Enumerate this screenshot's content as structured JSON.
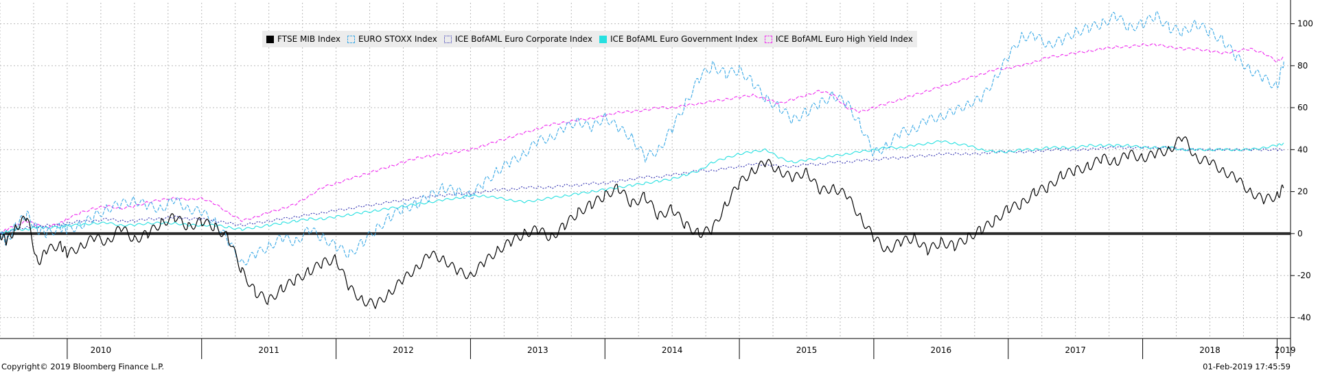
{
  "chart_data": {
    "type": "line",
    "ylim": [
      -50,
      110
    ],
    "y_ticks": [
      100,
      80,
      60,
      40,
      20,
      0,
      -20,
      -40
    ],
    "y_tick_labels": [
      "100",
      "80",
      "60",
      "40",
      "20",
      "0",
      "-20",
      "-40"
    ],
    "x_labels": [
      "2010",
      "2011",
      "2012",
      "2013",
      "2014",
      "2015",
      "2016",
      "2017",
      "2018",
      "2019"
    ],
    "x_start_year": 2009.5,
    "x_end_year": 2019.1,
    "grid": true,
    "y_axis_side": "right",
    "zero_line": true,
    "legend_placement": "top-left",
    "series": [
      {
        "name": "FTSE MIB Index",
        "color": "#000000",
        "dash": "solid",
        "swatch": "filled",
        "x": [
          2009.5,
          2009.55,
          2009.62,
          2009.7,
          2009.78,
          2009.85,
          2009.95,
          2010.0,
          2010.1,
          2010.2,
          2010.3,
          2010.4,
          2010.5,
          2010.6,
          2010.7,
          2010.8,
          2010.9,
          2011.0,
          2011.1,
          2011.2,
          2011.3,
          2011.4,
          2011.5,
          2011.6,
          2011.7,
          2011.8,
          2011.9,
          2012.0,
          2012.1,
          2012.2,
          2012.3,
          2012.4,
          2012.5,
          2012.6,
          2012.7,
          2012.8,
          2012.9,
          2013.0,
          2013.1,
          2013.2,
          2013.3,
          2013.4,
          2013.5,
          2013.6,
          2013.7,
          2013.8,
          2013.9,
          2014.0,
          2014.1,
          2014.2,
          2014.3,
          2014.4,
          2014.5,
          2014.6,
          2014.7,
          2014.8,
          2014.9,
          2015.0,
          2015.1,
          2015.2,
          2015.3,
          2015.4,
          2015.5,
          2015.6,
          2015.7,
          2015.8,
          2015.9,
          2016.0,
          2016.1,
          2016.2,
          2016.3,
          2016.4,
          2016.5,
          2016.6,
          2016.7,
          2016.8,
          2016.9,
          2017.0,
          2017.1,
          2017.2,
          2017.3,
          2017.4,
          2017.5,
          2017.6,
          2017.7,
          2017.8,
          2017.9,
          2018.0,
          2018.1,
          2018.2,
          2018.3,
          2018.4,
          2018.5,
          2018.6,
          2018.7,
          2018.8,
          2018.9,
          2019.0,
          2019.05
        ],
        "values": [
          0,
          -4,
          3,
          8,
          -14,
          -8,
          -5,
          -10,
          -6,
          -2,
          -4,
          3,
          -3,
          0,
          5,
          8,
          3,
          6,
          3,
          -2,
          -18,
          -28,
          -32,
          -26,
          -22,
          -18,
          -14,
          -12,
          -26,
          -32,
          -34,
          -28,
          -22,
          -16,
          -10,
          -12,
          -18,
          -20,
          -14,
          -8,
          -4,
          0,
          2,
          -2,
          4,
          10,
          14,
          18,
          22,
          14,
          18,
          8,
          12,
          4,
          0,
          2,
          14,
          24,
          30,
          34,
          30,
          26,
          30,
          20,
          22,
          18,
          8,
          -2,
          -8,
          -4,
          -2,
          -8,
          -4,
          -6,
          -2,
          2,
          6,
          12,
          14,
          20,
          22,
          28,
          30,
          32,
          36,
          34,
          38,
          36,
          38,
          40,
          46,
          36,
          34,
          30,
          26,
          20,
          16,
          18,
          22
        ]
      },
      {
        "name": "EURO STOXX Index",
        "color": "#3aa9e6",
        "dash": "dashed",
        "swatch": "outline",
        "x": [
          2009.5,
          2009.55,
          2009.62,
          2009.7,
          2009.78,
          2009.85,
          2009.95,
          2010.0,
          2010.1,
          2010.2,
          2010.3,
          2010.4,
          2010.5,
          2010.6,
          2010.7,
          2010.8,
          2010.9,
          2011.0,
          2011.1,
          2011.2,
          2011.3,
          2011.4,
          2011.5,
          2011.6,
          2011.7,
          2011.8,
          2011.9,
          2012.0,
          2012.1,
          2012.2,
          2012.3,
          2012.4,
          2012.5,
          2012.6,
          2012.7,
          2012.8,
          2012.9,
          2013.0,
          2013.1,
          2013.2,
          2013.3,
          2013.4,
          2013.5,
          2013.6,
          2013.7,
          2013.8,
          2013.9,
          2014.0,
          2014.1,
          2014.2,
          2014.3,
          2014.4,
          2014.5,
          2014.6,
          2014.7,
          2014.8,
          2014.9,
          2015.0,
          2015.1,
          2015.2,
          2015.3,
          2015.4,
          2015.5,
          2015.6,
          2015.7,
          2015.8,
          2015.9,
          2016.0,
          2016.1,
          2016.2,
          2016.3,
          2016.4,
          2016.5,
          2016.6,
          2016.7,
          2016.8,
          2016.9,
          2017.0,
          2017.1,
          2017.2,
          2017.3,
          2017.4,
          2017.5,
          2017.6,
          2017.7,
          2017.8,
          2017.9,
          2018.0,
          2018.1,
          2018.2,
          2018.3,
          2018.4,
          2018.5,
          2018.6,
          2018.7,
          2018.8,
          2018.9,
          2019.0,
          2019.05
        ],
        "values": [
          0,
          -4,
          4,
          9,
          2,
          0,
          3,
          2,
          4,
          8,
          12,
          14,
          16,
          13,
          12,
          16,
          12,
          10,
          6,
          -4,
          -14,
          -10,
          -6,
          -2,
          -4,
          2,
          -2,
          -6,
          -10,
          -4,
          2,
          8,
          12,
          14,
          18,
          22,
          20,
          18,
          24,
          30,
          34,
          38,
          44,
          46,
          50,
          54,
          50,
          56,
          50,
          46,
          36,
          40,
          50,
          62,
          74,
          80,
          76,
          78,
          72,
          64,
          60,
          54,
          58,
          62,
          66,
          62,
          52,
          38,
          42,
          48,
          50,
          54,
          56,
          58,
          62,
          64,
          74,
          84,
          94,
          94,
          90,
          92,
          96,
          98,
          100,
          104,
          98,
          100,
          104,
          98,
          96,
          100,
          96,
          92,
          84,
          78,
          74,
          70,
          82
        ]
      },
      {
        "name": "ICE BofAML Euro Corporate Index",
        "color": "#2f2fb0",
        "dash": "dotted",
        "swatch": "outline",
        "x": [
          2009.5,
          2009.55,
          2009.62,
          2009.7,
          2009.78,
          2009.85,
          2009.95,
          2010.0,
          2010.1,
          2010.2,
          2010.3,
          2010.4,
          2010.5,
          2010.6,
          2010.7,
          2010.8,
          2010.9,
          2011.0,
          2011.1,
          2011.2,
          2011.3,
          2011.4,
          2011.5,
          2011.6,
          2011.7,
          2011.8,
          2011.9,
          2012.0,
          2012.1,
          2012.2,
          2012.3,
          2012.4,
          2012.5,
          2012.6,
          2012.7,
          2012.8,
          2012.9,
          2013.0,
          2013.1,
          2013.2,
          2013.3,
          2013.4,
          2013.5,
          2013.6,
          2013.7,
          2013.8,
          2013.9,
          2014.0,
          2014.1,
          2014.2,
          2014.3,
          2014.4,
          2014.5,
          2014.6,
          2014.7,
          2014.8,
          2014.9,
          2015.0,
          2015.1,
          2015.2,
          2015.3,
          2015.4,
          2015.5,
          2015.6,
          2015.7,
          2015.8,
          2015.9,
          2016.0,
          2016.1,
          2016.2,
          2016.3,
          2016.4,
          2016.5,
          2016.6,
          2016.7,
          2016.8,
          2016.9,
          2017.0,
          2017.1,
          2017.2,
          2017.3,
          2017.4,
          2017.5,
          2017.6,
          2017.7,
          2017.8,
          2017.9,
          2018.0,
          2018.1,
          2018.2,
          2018.3,
          2018.4,
          2018.5,
          2018.6,
          2018.7,
          2018.8,
          2018.9,
          2019.0,
          2019.05
        ],
        "values": [
          0,
          1,
          2,
          3,
          3,
          4,
          4,
          5,
          6,
          6,
          7,
          6,
          6,
          7,
          7,
          8,
          7,
          7,
          6,
          5,
          4,
          5,
          6,
          7,
          8,
          9,
          10,
          11,
          12,
          13,
          14,
          15,
          16,
          17,
          18,
          18,
          19,
          19,
          20,
          21,
          21,
          22,
          22,
          22,
          23,
          23,
          24,
          24,
          25,
          26,
          27,
          27,
          28,
          29,
          30,
          30,
          31,
          32,
          33,
          33,
          32,
          32,
          33,
          33,
          34,
          34,
          35,
          35,
          36,
          36,
          37,
          37,
          38,
          38,
          38,
          38,
          39,
          39,
          39,
          39,
          40,
          40,
          40,
          40,
          41,
          41,
          41,
          41,
          41,
          41,
          40,
          40,
          40,
          40,
          40,
          40,
          40,
          40,
          40
        ]
      },
      {
        "name": "ICE BofAML Euro Government Index",
        "color": "#26e0e0",
        "dash": "solid",
        "swatch": "filled",
        "x": [
          2009.5,
          2009.55,
          2009.62,
          2009.7,
          2009.78,
          2009.85,
          2009.95,
          2010.0,
          2010.1,
          2010.2,
          2010.3,
          2010.4,
          2010.5,
          2010.6,
          2010.7,
          2010.8,
          2010.9,
          2011.0,
          2011.1,
          2011.2,
          2011.3,
          2011.4,
          2011.5,
          2011.6,
          2011.7,
          2011.8,
          2011.9,
          2012.0,
          2012.1,
          2012.2,
          2012.3,
          2012.4,
          2012.5,
          2012.6,
          2012.7,
          2012.8,
          2012.9,
          2013.0,
          2013.1,
          2013.2,
          2013.3,
          2013.4,
          2013.5,
          2013.6,
          2013.7,
          2013.8,
          2013.9,
          2014.0,
          2014.1,
          2014.2,
          2014.3,
          2014.4,
          2014.5,
          2014.6,
          2014.7,
          2014.8,
          2014.9,
          2015.0,
          2015.1,
          2015.2,
          2015.3,
          2015.4,
          2015.5,
          2015.6,
          2015.7,
          2015.8,
          2015.9,
          2016.0,
          2016.1,
          2016.2,
          2016.3,
          2016.4,
          2016.5,
          2016.6,
          2016.7,
          2016.8,
          2016.9,
          2017.0,
          2017.1,
          2017.2,
          2017.3,
          2017.4,
          2017.5,
          2017.6,
          2017.7,
          2017.8,
          2017.9,
          2018.0,
          2018.1,
          2018.2,
          2018.3,
          2018.4,
          2018.5,
          2018.6,
          2018.7,
          2018.8,
          2018.9,
          2019.0,
          2019.05
        ],
        "values": [
          0,
          1,
          2,
          2,
          3,
          3,
          3,
          4,
          4,
          5,
          5,
          4,
          4,
          5,
          5,
          5,
          4,
          4,
          4,
          3,
          2,
          3,
          4,
          5,
          6,
          7,
          7,
          8,
          9,
          10,
          11,
          12,
          13,
          14,
          15,
          16,
          17,
          18,
          18,
          17,
          16,
          15,
          16,
          17,
          18,
          19,
          20,
          21,
          22,
          23,
          24,
          25,
          26,
          28,
          30,
          34,
          36,
          38,
          39,
          40,
          36,
          34,
          35,
          36,
          37,
          38,
          39,
          40,
          41,
          41,
          42,
          43,
          44,
          43,
          42,
          40,
          39,
          39,
          40,
          40,
          41,
          41,
          41,
          42,
          42,
          42,
          42,
          41,
          41,
          41,
          40,
          40,
          40,
          40,
          40,
          40,
          41,
          42,
          43
        ]
      },
      {
        "name": "ICE BofAML Euro High Yield Index",
        "color": "#ee2aee",
        "dash": "dashed",
        "swatch": "outline",
        "x": [
          2009.5,
          2009.55,
          2009.62,
          2009.7,
          2009.78,
          2009.85,
          2009.95,
          2010.0,
          2010.1,
          2010.2,
          2010.3,
          2010.4,
          2010.5,
          2010.6,
          2010.7,
          2010.8,
          2010.9,
          2011.0,
          2011.1,
          2011.2,
          2011.3,
          2011.4,
          2011.5,
          2011.6,
          2011.7,
          2011.8,
          2011.9,
          2012.0,
          2012.1,
          2012.2,
          2012.3,
          2012.4,
          2012.5,
          2012.6,
          2012.7,
          2012.8,
          2012.9,
          2013.0,
          2013.1,
          2013.2,
          2013.3,
          2013.4,
          2013.5,
          2013.6,
          2013.7,
          2013.8,
          2013.9,
          2014.0,
          2014.1,
          2014.2,
          2014.3,
          2014.4,
          2014.5,
          2014.6,
          2014.7,
          2014.8,
          2014.9,
          2015.0,
          2015.1,
          2015.2,
          2015.3,
          2015.4,
          2015.5,
          2015.6,
          2015.7,
          2015.8,
          2015.9,
          2016.0,
          2016.1,
          2016.2,
          2016.3,
          2016.4,
          2016.5,
          2016.6,
          2016.7,
          2016.8,
          2016.9,
          2017.0,
          2017.1,
          2017.2,
          2017.3,
          2017.4,
          2017.5,
          2017.6,
          2017.7,
          2017.8,
          2017.9,
          2018.0,
          2018.1,
          2018.2,
          2018.3,
          2018.4,
          2018.5,
          2018.6,
          2018.7,
          2018.8,
          2018.9,
          2019.0,
          2019.05
        ],
        "values": [
          0,
          2,
          4,
          6,
          4,
          3,
          5,
          7,
          10,
          12,
          13,
          12,
          13,
          15,
          16,
          17,
          16,
          17,
          14,
          10,
          6,
          8,
          10,
          12,
          14,
          18,
          22,
          24,
          26,
          28,
          30,
          32,
          34,
          36,
          37,
          38,
          39,
          40,
          42,
          44,
          46,
          48,
          50,
          52,
          53,
          54,
          55,
          56,
          58,
          58,
          59,
          60,
          60,
          61,
          62,
          63,
          64,
          65,
          66,
          64,
          62,
          64,
          66,
          68,
          66,
          60,
          58,
          60,
          62,
          64,
          66,
          68,
          70,
          72,
          74,
          76,
          78,
          79,
          80,
          82,
          84,
          85,
          86,
          87,
          88,
          89,
          89,
          90,
          90,
          89,
          88,
          88,
          87,
          86,
          87,
          88,
          86,
          82,
          84
        ]
      }
    ]
  },
  "footer": {
    "copyright": "Copyright© 2019 Bloomberg Finance L.P.",
    "timestamp": "01-Feb-2019 17:45:59"
  }
}
